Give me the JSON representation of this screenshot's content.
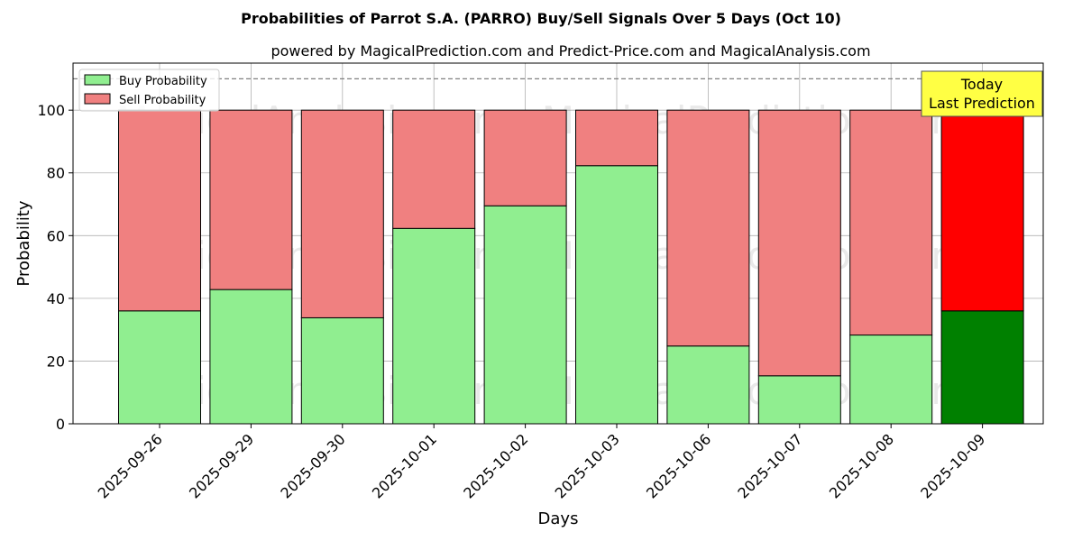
{
  "chart_data": {
    "type": "bar",
    "title": "Probabilities of Parrot S.A. (PARRO) Buy/Sell Signals Over 5 Days (Oct 10)",
    "subtitle": "powered by MagicalPrediction.com and Predict-Price.com and MagicalAnalysis.com",
    "xlabel": "Days",
    "ylabel": "Probability",
    "ylim": [
      0,
      115
    ],
    "yticks": [
      0,
      20,
      40,
      60,
      80,
      100
    ],
    "grid": true,
    "legend_position": "top-left",
    "stacked": true,
    "categories": [
      "2025-09-26",
      "2025-09-29",
      "2025-09-30",
      "2025-10-01",
      "2025-10-02",
      "2025-10-03",
      "2025-10-06",
      "2025-10-07",
      "2025-10-08",
      "2025-10-09"
    ],
    "series": [
      {
        "name": "Buy Probability",
        "color": "#90ee90",
        "values": [
          36,
          42.8,
          33.8,
          62.3,
          69.5,
          82.3,
          24.8,
          15.3,
          28.3,
          36
        ]
      },
      {
        "name": "Sell Probability",
        "color": "#f08080",
        "values": [
          64,
          57.2,
          66.2,
          37.7,
          30.5,
          17.7,
          75.2,
          84.7,
          71.7,
          64
        ]
      }
    ],
    "highlight": {
      "index": 9,
      "buy_color": "#008000",
      "sell_color": "#ff0000"
    },
    "reference_line": {
      "y": 110,
      "style": "dashed",
      "color": "#808080"
    },
    "annotation": {
      "line1": "Today",
      "line2": "Last Prediction",
      "background": "#ffff44"
    },
    "watermarks": [
      "MagicalAnalysis.com",
      "MagicalPrediction.com"
    ]
  }
}
